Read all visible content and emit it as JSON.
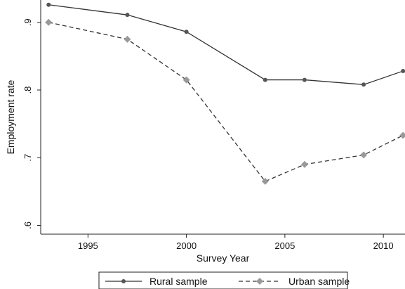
{
  "chart_data": {
    "type": "line",
    "title": "",
    "xlabel": "Survey Year",
    "ylabel": "Employment rate",
    "xlim": [
      1992.6,
      2011.1
    ],
    "ylim": [
      0.587,
      0.933
    ],
    "x_ticks": [
      1995,
      2000,
      2005,
      2010
    ],
    "x_tick_labels": [
      "1995",
      "2000",
      "2005",
      "2010"
    ],
    "y_ticks": [
      0.6,
      0.7,
      0.8,
      0.9
    ],
    "y_tick_labels": [
      ".6",
      ".7",
      ".8",
      ".9"
    ],
    "grid": false,
    "legend_position": "bottom",
    "series": [
      {
        "name": "Rural sample",
        "style": "solid",
        "marker": "circle",
        "color": "#333333",
        "marker_color": "#555555",
        "x": [
          1993,
          1997,
          2000,
          2004,
          2006,
          2009,
          2011
        ],
        "y": [
          0.926,
          0.911,
          0.886,
          0.815,
          0.815,
          0.808,
          0.828
        ]
      },
      {
        "name": "Urban sample",
        "style": "dashed",
        "marker": "diamond",
        "color": "#333333",
        "marker_color": "#999999",
        "x": [
          1993,
          1997,
          2000,
          2004,
          2006,
          2009,
          2011
        ],
        "y": [
          0.9,
          0.875,
          0.815,
          0.665,
          0.69,
          0.704,
          0.733
        ]
      }
    ]
  }
}
